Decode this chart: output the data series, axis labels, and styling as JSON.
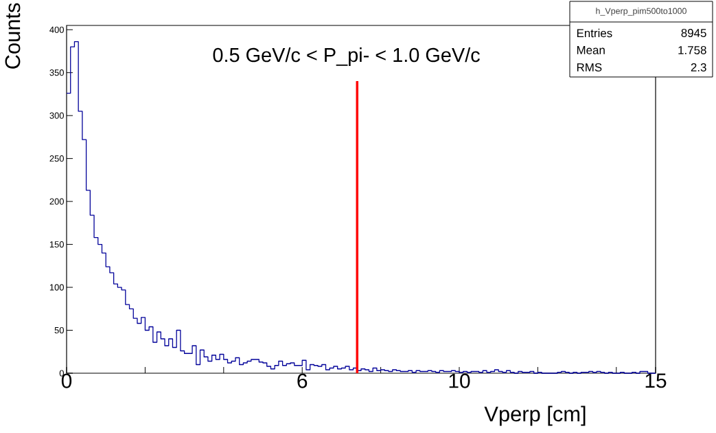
{
  "chart_data": {
    "type": "histogram",
    "title": "0.5 GeV/c < P_pi- < 1.0 GeV/c",
    "xlabel": "Vperp [cm]",
    "ylabel": "Counts",
    "bins": [
      0,
      0.1,
      0.2,
      0.3,
      0.4,
      0.5,
      0.6,
      0.7,
      0.8,
      0.9,
      1,
      1.1,
      1.2,
      1.3,
      1.4,
      1.5,
      1.6,
      1.7,
      1.8,
      1.9,
      2,
      2.1,
      2.2,
      2.3,
      2.4,
      2.5,
      2.6,
      2.7,
      2.8,
      2.9,
      3,
      3.1,
      3.2,
      3.3,
      3.4,
      3.5,
      3.6,
      3.7,
      3.8,
      3.9,
      4,
      4.1,
      4.2,
      4.3,
      4.4,
      4.5,
      4.6,
      4.7,
      4.8,
      4.9,
      5,
      5.1,
      5.2,
      5.3,
      5.4,
      5.5,
      5.6,
      5.7,
      5.8,
      5.9,
      6,
      6.1,
      6.2,
      6.3,
      6.4,
      6.5,
      6.6,
      6.7,
      6.8,
      6.9,
      7,
      7.1,
      7.2,
      7.3,
      7.4,
      7.5,
      7.6,
      7.7,
      7.8,
      7.9,
      8,
      8.1,
      8.2,
      8.3,
      8.4,
      8.5,
      8.6,
      8.7,
      8.8,
      8.9,
      9,
      9.1,
      9.2,
      9.3,
      9.4,
      9.5,
      9.6,
      9.7,
      9.8,
      9.9,
      10,
      10.1,
      10.2,
      10.3,
      10.4,
      10.5,
      10.6,
      10.7,
      10.8,
      10.9,
      11,
      11.1,
      11.2,
      11.3,
      11.4,
      11.5,
      11.6,
      11.7,
      11.8,
      11.9,
      12,
      12.1,
      12.2,
      12.3,
      12.4,
      12.5,
      12.6,
      12.7,
      12.8,
      12.9,
      13,
      13.1,
      13.2,
      13.3,
      13.4,
      13.5,
      13.6,
      13.7,
      13.8,
      13.9,
      14,
      14.1,
      14.2,
      14.3,
      14.4,
      14.5,
      14.6,
      14.7,
      14.8,
      14.9,
      15
    ],
    "values": [
      326,
      380,
      386,
      305,
      272,
      213,
      184,
      158,
      150,
      140,
      124,
      117,
      104,
      100,
      97,
      80,
      75,
      64,
      58,
      65,
      50,
      54,
      36,
      48,
      40,
      32,
      40,
      30,
      50,
      26,
      23,
      23,
      32,
      10,
      27,
      19,
      14,
      21,
      16,
      22,
      16,
      12,
      14,
      18,
      10,
      12,
      14,
      16,
      16,
      13,
      12,
      8,
      5,
      9,
      14,
      9,
      11,
      12,
      9,
      9,
      15,
      4,
      10,
      9,
      8,
      10,
      4,
      6,
      8,
      5,
      6,
      8,
      4,
      6,
      3,
      5,
      4,
      2,
      6,
      3,
      4,
      3,
      2,
      4,
      3,
      2,
      2,
      3,
      1,
      3,
      2,
      2,
      3,
      2,
      1,
      3,
      2,
      2,
      3,
      2,
      1,
      2,
      1,
      2,
      2,
      1,
      3,
      1,
      2,
      4,
      2,
      1,
      3,
      1,
      0,
      2,
      1,
      1,
      2,
      0,
      1,
      0,
      0,
      0,
      0,
      1,
      2,
      1,
      0,
      1,
      0,
      1,
      1,
      2,
      1,
      2,
      1,
      0,
      1,
      0,
      0,
      1,
      0,
      0,
      1,
      0,
      2,
      2,
      0,
      0
    ],
    "color": "#000099",
    "xlim": [
      0,
      15
    ],
    "ylim": [
      0,
      405
    ],
    "xticks": [
      0,
      {
        "value": 2,
        "label": null
      },
      {
        "value": 4,
        "label": null
      },
      6,
      {
        "value": 8,
        "label": null
      },
      10,
      {
        "value": 12,
        "label": null
      },
      {
        "value": 14,
        "label": null
      },
      15
    ],
    "yticks": [
      0,
      50,
      100,
      150,
      200,
      250,
      300,
      350,
      400
    ],
    "ref_lines": [
      {
        "axis": "x",
        "value": 7.4,
        "color": "#ff0000"
      }
    ],
    "annotations": [
      "h_Vperp_pim500to1000",
      "Entries",
      "8945",
      "Mean",
      "1.758",
      "RMS",
      "2.3"
    ],
    "grid": false
  }
}
